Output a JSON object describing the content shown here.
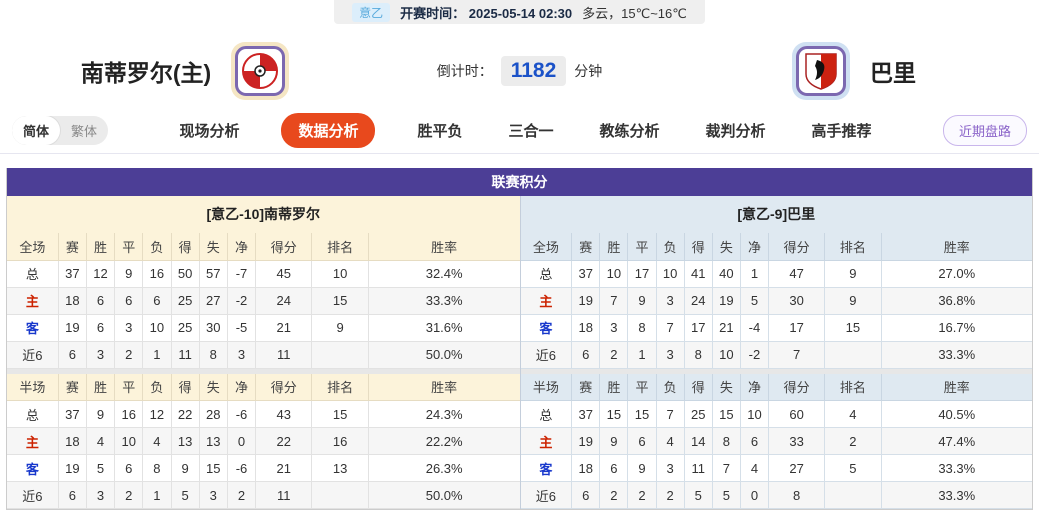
{
  "top_bar": {
    "league_badge": "意乙",
    "kickoff": "开赛时间： 2025-05-14 02:30",
    "weather": "多云，15℃~16℃"
  },
  "match": {
    "home_name": "南蒂罗尔(主)",
    "away_name": "巴里",
    "countdown_label": "倒计时：",
    "countdown_value": "1182",
    "countdown_unit": "分钟"
  },
  "nav": {
    "lang_simplified": "简体",
    "lang_traditional": "繁体",
    "tabs": [
      {
        "label": "现场分析",
        "active": false
      },
      {
        "label": "数据分析",
        "active": true
      },
      {
        "label": "胜平负",
        "active": false
      },
      {
        "label": "三合一",
        "active": false
      },
      {
        "label": "教练分析",
        "active": false
      },
      {
        "label": "裁判分析",
        "active": false
      },
      {
        "label": "高手推荐",
        "active": false
      }
    ],
    "recent_button": "近期盘路"
  },
  "league_table": {
    "title": "联赛积分",
    "columns_full": [
      "全场",
      "赛",
      "胜",
      "平",
      "负",
      "得",
      "失",
      "净",
      "得分",
      "排名",
      "胜率"
    ],
    "columns_half": [
      "半场",
      "赛",
      "胜",
      "平",
      "负",
      "得",
      "失",
      "净",
      "得分",
      "排名",
      "胜率"
    ],
    "row_types": [
      "total",
      "home",
      "away",
      "recent"
    ],
    "home": {
      "subtitle": "[意乙-10]南蒂罗尔",
      "full_rows": [
        {
          "label": "总",
          "cells": [
            "37",
            "12",
            "9",
            "16",
            "50",
            "57",
            "-7",
            "45",
            "10",
            "32.4%"
          ]
        },
        {
          "label": "主",
          "cells": [
            "18",
            "6",
            "6",
            "6",
            "25",
            "27",
            "-2",
            "24",
            "15",
            "33.3%"
          ]
        },
        {
          "label": "客",
          "cells": [
            "19",
            "6",
            "3",
            "10",
            "25",
            "30",
            "-5",
            "21",
            "9",
            "31.6%"
          ]
        },
        {
          "label": "近6",
          "cells": [
            "6",
            "3",
            "2",
            "1",
            "11",
            "8",
            "3",
            "11",
            "",
            "50.0%"
          ]
        }
      ],
      "half_rows": [
        {
          "label": "总",
          "cells": [
            "37",
            "9",
            "16",
            "12",
            "22",
            "28",
            "-6",
            "43",
            "15",
            "24.3%"
          ]
        },
        {
          "label": "主",
          "cells": [
            "18",
            "4",
            "10",
            "4",
            "13",
            "13",
            "0",
            "22",
            "16",
            "22.2%"
          ]
        },
        {
          "label": "客",
          "cells": [
            "19",
            "5",
            "6",
            "8",
            "9",
            "15",
            "-6",
            "21",
            "13",
            "26.3%"
          ]
        },
        {
          "label": "近6",
          "cells": [
            "6",
            "3",
            "2",
            "1",
            "5",
            "3",
            "2",
            "11",
            "",
            "50.0%"
          ]
        }
      ]
    },
    "away": {
      "subtitle": "[意乙-9]巴里",
      "full_rows": [
        {
          "label": "总",
          "cells": [
            "37",
            "10",
            "17",
            "10",
            "41",
            "40",
            "1",
            "47",
            "9",
            "27.0%"
          ]
        },
        {
          "label": "主",
          "cells": [
            "19",
            "7",
            "9",
            "3",
            "24",
            "19",
            "5",
            "30",
            "9",
            "36.8%"
          ]
        },
        {
          "label": "客",
          "cells": [
            "18",
            "3",
            "8",
            "7",
            "17",
            "21",
            "-4",
            "17",
            "15",
            "16.7%"
          ]
        },
        {
          "label": "近6",
          "cells": [
            "6",
            "2",
            "1",
            "3",
            "8",
            "10",
            "-2",
            "7",
            "",
            "33.3%"
          ]
        }
      ],
      "half_rows": [
        {
          "label": "总",
          "cells": [
            "37",
            "15",
            "15",
            "7",
            "25",
            "15",
            "10",
            "60",
            "4",
            "40.5%"
          ]
        },
        {
          "label": "主",
          "cells": [
            "19",
            "9",
            "6",
            "4",
            "14",
            "8",
            "6",
            "33",
            "2",
            "47.4%"
          ]
        },
        {
          "label": "客",
          "cells": [
            "18",
            "6",
            "9",
            "3",
            "11",
            "7",
            "4",
            "27",
            "5",
            "33.3%"
          ]
        },
        {
          "label": "近6",
          "cells": [
            "6",
            "2",
            "2",
            "2",
            "5",
            "5",
            "0",
            "8",
            "",
            "33.3%"
          ]
        }
      ]
    }
  },
  "colors": {
    "section_header_purple": "#4c3e96",
    "active_tab_orange": "#e8491d",
    "home_panel_bg": "#fcf3da",
    "away_panel_bg": "#dfe9f1",
    "home_row_label_red": "#cc2200",
    "away_row_label_blue": "#1838cc",
    "countdown_blue": "#1b52c8"
  }
}
